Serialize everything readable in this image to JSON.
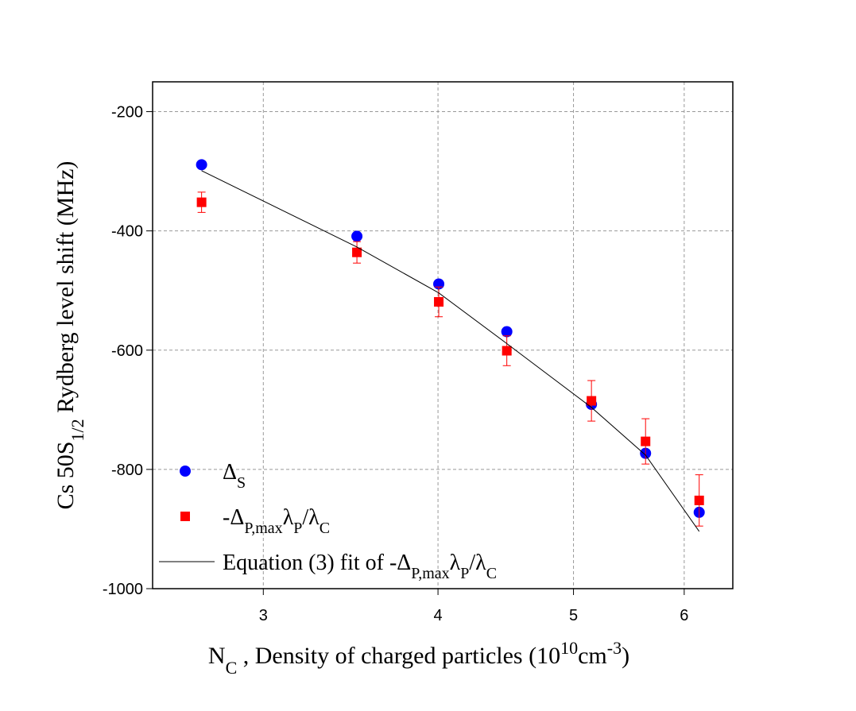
{
  "chart_data": {
    "type": "scatter",
    "xlabel": [
      "N",
      "C",
      " , Density of charged particles (10",
      "10",
      "cm",
      "-3",
      ")"
    ],
    "ylabel": [
      "Cs 50S",
      "1/2",
      " Rydberg level shift (MHz)"
    ],
    "xscale": "log",
    "xlim": [
      2.5,
      6.5
    ],
    "xticks": [
      3,
      4,
      5,
      6
    ],
    "ylim": [
      -1000,
      -150
    ],
    "yticks": [
      -200,
      -400,
      -600,
      -800,
      -1000
    ],
    "grid": true,
    "legend": "lower left",
    "series": [
      {
        "name": [
          "Δ",
          "S"
        ],
        "color": "#0000ff",
        "marker": "circle",
        "x": [
          2.71,
          3.5,
          4.005,
          4.48,
          5.15,
          5.63,
          6.15
        ],
        "values": [
          -289,
          -409,
          -489,
          -569,
          -691,
          -773,
          -872
        ]
      },
      {
        "name": [
          "-Δ",
          "P,max",
          "λ",
          "P",
          "/λ",
          "C"
        ],
        "color": "#ff0000",
        "marker": "square",
        "x": [
          2.71,
          3.5,
          4.005,
          4.48,
          5.15,
          5.63,
          6.15
        ],
        "values": [
          -352,
          -436,
          -519,
          -601,
          -685,
          -753,
          -852
        ],
        "errors": [
          17,
          18,
          25,
          25,
          34,
          38,
          43
        ]
      },
      {
        "name": [
          "Equation (3) fit of -Δ",
          "P,max",
          "λ",
          "P",
          "/λ",
          "C"
        ],
        "color": "#000000",
        "marker": "line",
        "x": [
          2.71,
          3.5,
          4.005,
          4.48,
          5.15,
          5.63,
          6.15
        ],
        "values": [
          -299,
          -427,
          -504,
          -589,
          -696,
          -776,
          -904
        ]
      }
    ]
  }
}
